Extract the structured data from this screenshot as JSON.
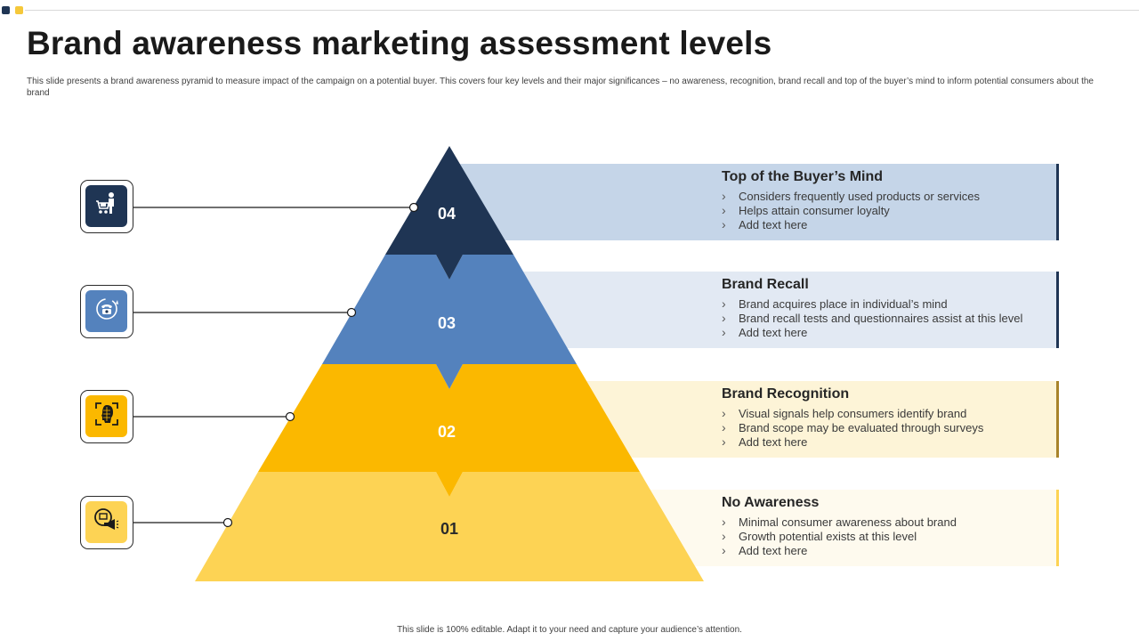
{
  "slide": {
    "title": "Brand awareness marketing assessment levels",
    "subtitle": "This slide presents a brand awareness pyramid to measure impact of the campaign on a potential buyer. This covers four key levels and their major significances – no awareness, recognition, brand recall and top of the buyer’s mind to inform potential consumers about the brand",
    "footer": "This slide is 100% editable.  Adapt it to your need and capture your audience’s attention."
  },
  "levels": [
    {
      "number": "04",
      "title": "Top of the Buyer’s Mind",
      "bullets": [
        "Considers frequently used products or services",
        "Helps attain consumer loyalty",
        "Add text here"
      ],
      "pyramid_color": "#1f3554",
      "band_color": "#c5d5e8",
      "edge_color": "#1f3554",
      "icon": "shopping-cart-person-icon"
    },
    {
      "number": "03",
      "title": "Brand Recall",
      "bullets": [
        "Brand acquires place in individual’s  mind",
        "Brand recall tests and questionnaires  assist at this level",
        "Add text here"
      ],
      "pyramid_color": "#5482bd",
      "band_color": "#e2e9f3",
      "edge_color": "#1f3554",
      "icon": "telephone-refresh-icon"
    },
    {
      "number": "02",
      "title": "Brand Recognition",
      "bullets": [
        "Visual signals help consumers identify brand",
        "Brand scope may be evaluated  through surveys",
        "Add text here"
      ],
      "pyramid_color": "#fbb800",
      "band_color": "#fdf4d7",
      "edge_color": "#a8832a",
      "icon": "face-scan-icon"
    },
    {
      "number": "01",
      "title": "No Awareness",
      "bullets": [
        "Minimal consumer awareness about brand",
        "Growth potential exists at this level",
        "Add text here"
      ],
      "pyramid_color": "#fdd354",
      "band_color": "#fefaee",
      "edge_color": "#fdd354",
      "icon": "megaphone-screen-icon"
    }
  ]
}
